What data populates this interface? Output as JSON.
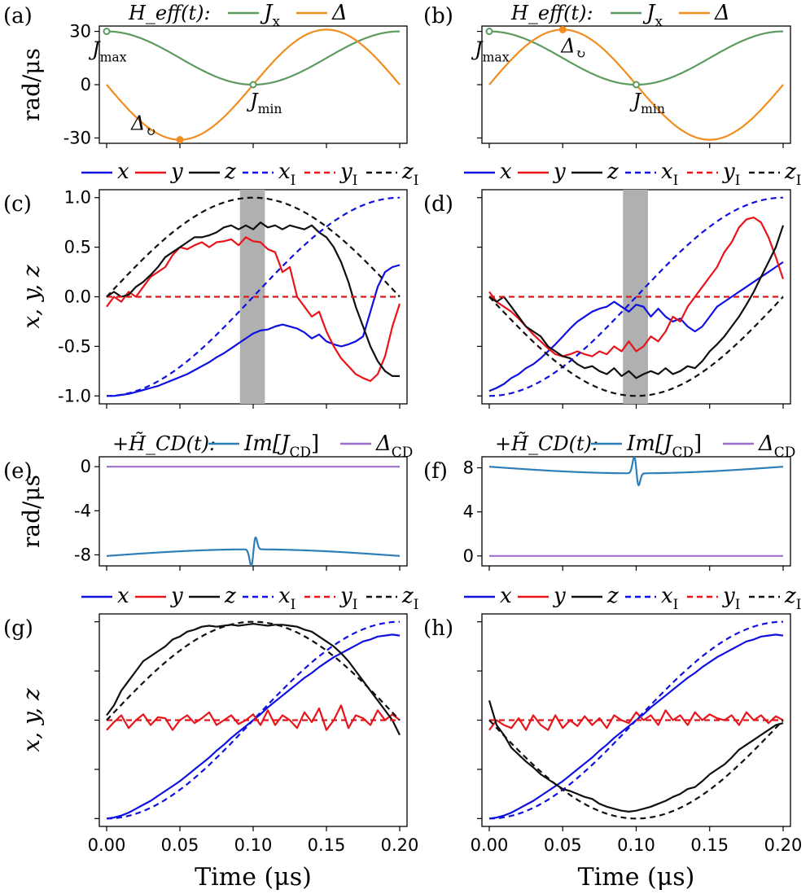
{
  "chart_data": [
    {
      "id": "a",
      "type": "line",
      "panel_label": "(a)",
      "legend_prefix": "H_eff(t):",
      "ylabel": "rad/μs",
      "ylim": [
        -33,
        33
      ],
      "yticks": [
        30,
        0,
        -30
      ],
      "ytick_labels": [
        "30",
        "0",
        "-30"
      ],
      "series": [
        {
          "name": "J_x",
          "label": "J",
          "sub": "x",
          "color": "#5b9b5e",
          "func": "jx",
          "amp": 30
        },
        {
          "name": "Δ",
          "label": "Δ",
          "color": "#f28c1e",
          "func": "delta",
          "amp": -31
        }
      ],
      "annotations": [
        {
          "label": "J",
          "sub": "max",
          "x": 0.0,
          "y": 30,
          "color": "#5b9b5e"
        },
        {
          "label": "J",
          "sub": "min",
          "x": 0.1,
          "y": 0,
          "color": "#5b9b5e"
        },
        {
          "label": "Δ",
          "sub": "↻",
          "x": 0.05,
          "y": -31,
          "color": "#f28c1e"
        }
      ]
    },
    {
      "id": "b",
      "type": "line",
      "panel_label": "(b)",
      "legend_prefix": "H_eff(t):",
      "ylim": [
        -33,
        33
      ],
      "yticks": [
        30,
        0,
        -30
      ],
      "series": [
        {
          "name": "J_x",
          "label": "J",
          "sub": "x",
          "color": "#5b9b5e",
          "func": "jx",
          "amp": 30
        },
        {
          "name": "Δ",
          "label": "Δ",
          "color": "#f28c1e",
          "func": "delta",
          "amp": 31
        }
      ],
      "annotations": [
        {
          "label": "J",
          "sub": "max",
          "x": 0.0,
          "y": 30,
          "color": "#5b9b5e"
        },
        {
          "label": "J",
          "sub": "min",
          "x": 0.1,
          "y": 0,
          "color": "#5b9b5e"
        },
        {
          "label": "Δ",
          "sub": "↻",
          "x": 0.05,
          "y": 31,
          "color": "#f28c1e"
        }
      ]
    },
    {
      "id": "c",
      "type": "line",
      "panel_label": "(c)",
      "ylabel": "x, y, z",
      "ylim": [
        -1.08,
        1.08
      ],
      "yticks": [
        1.0,
        0.5,
        0.0,
        -0.5,
        -1.0
      ],
      "ytick_labels": [
        "1.0",
        "0.5",
        "0.0",
        "-0.5",
        "-1.0"
      ],
      "shade": [
        0.091,
        0.108
      ],
      "legend": [
        "x",
        "y",
        "z",
        "x_I",
        "y_I",
        "z_I"
      ],
      "series": [
        {
          "name": "x",
          "color": "#1010e0",
          "dash": false,
          "x0": 0,
          "x1": 0.2,
          "values": [
            -1.0,
            -1.0,
            -0.99,
            -0.98,
            -0.96,
            -0.94,
            -0.92,
            -0.9,
            -0.87,
            -0.84,
            -0.81,
            -0.78,
            -0.74,
            -0.7,
            -0.66,
            -0.61,
            -0.57,
            -0.52,
            -0.47,
            -0.42,
            -0.37,
            -0.34,
            -0.33,
            -0.3,
            -0.28,
            -0.3,
            -0.32,
            -0.36,
            -0.42,
            -0.38,
            -0.45,
            -0.48,
            -0.5,
            -0.48,
            -0.45,
            -0.4,
            -0.15,
            0.1,
            0.25,
            0.3,
            0.32
          ]
        },
        {
          "name": "y",
          "color": "#e8141a",
          "dash": false,
          "x0": 0,
          "x1": 0.2,
          "values": [
            -0.1,
            0.0,
            -0.05,
            0.05,
            0.0,
            0.1,
            0.2,
            0.25,
            0.3,
            0.42,
            0.5,
            0.48,
            0.52,
            0.55,
            0.5,
            0.55,
            0.56,
            0.58,
            0.52,
            0.6,
            0.56,
            0.55,
            0.48,
            0.45,
            0.25,
            0.3,
            0.0,
            -0.1,
            -0.2,
            -0.15,
            -0.35,
            -0.5,
            -0.62,
            -0.7,
            -0.78,
            -0.82,
            -0.85,
            -0.78,
            -0.6,
            -0.3,
            -0.07
          ]
        },
        {
          "name": "z",
          "color": "#101010",
          "dash": false,
          "x0": 0,
          "x1": 0.2,
          "values": [
            0.0,
            0.05,
            0.0,
            0.02,
            0.1,
            0.15,
            0.22,
            0.3,
            0.4,
            0.45,
            0.5,
            0.55,
            0.6,
            0.6,
            0.62,
            0.65,
            0.7,
            0.72,
            0.68,
            0.72,
            0.68,
            0.75,
            0.7,
            0.72,
            0.68,
            0.72,
            0.7,
            0.68,
            0.72,
            0.65,
            0.6,
            0.5,
            0.35,
            0.15,
            -0.1,
            -0.3,
            -0.5,
            -0.65,
            -0.75,
            -0.8,
            -0.8
          ]
        },
        {
          "name": "x_I",
          "color": "#1010e0",
          "dash": true,
          "func": "xI"
        },
        {
          "name": "y_I",
          "color": "#e8141a",
          "dash": true,
          "func": "zero"
        },
        {
          "name": "z_I",
          "color": "#101010",
          "dash": true,
          "func": "zIpos"
        }
      ]
    },
    {
      "id": "d",
      "type": "line",
      "panel_label": "(d)",
      "ylim": [
        -1.08,
        1.08
      ],
      "yticks": [
        1.0,
        0.5,
        0.0,
        -0.5,
        -1.0
      ],
      "shade": [
        0.091,
        0.108
      ],
      "legend": [
        "x",
        "y",
        "z",
        "x_I",
        "y_I",
        "z_I"
      ],
      "series": [
        {
          "name": "x",
          "color": "#1010e0",
          "dash": false,
          "x0": 0,
          "x1": 0.2,
          "values": [
            -0.95,
            -0.92,
            -0.88,
            -0.82,
            -0.78,
            -0.72,
            -0.68,
            -0.62,
            -0.55,
            -0.48,
            -0.4,
            -0.32,
            -0.25,
            -0.2,
            -0.15,
            -0.12,
            -0.1,
            -0.05,
            -0.1,
            -0.15,
            -0.08,
            -0.1,
            -0.2,
            -0.12,
            -0.2,
            -0.25,
            -0.22,
            -0.3,
            -0.35,
            -0.3,
            -0.2,
            -0.1,
            -0.05,
            0.0,
            0.05,
            0.1,
            0.15,
            0.2,
            0.25,
            0.3,
            0.35
          ]
        },
        {
          "name": "y",
          "color": "#e8141a",
          "dash": false,
          "x0": 0,
          "x1": 0.2,
          "values": [
            0.05,
            -0.05,
            -0.1,
            -0.15,
            -0.22,
            -0.3,
            -0.38,
            -0.45,
            -0.52,
            -0.58,
            -0.6,
            -0.58,
            -0.55,
            -0.58,
            -0.6,
            -0.55,
            -0.58,
            -0.5,
            -0.55,
            -0.45,
            -0.55,
            -0.5,
            -0.4,
            -0.45,
            -0.35,
            -0.2,
            -0.25,
            -0.1,
            0.0,
            0.1,
            0.2,
            0.3,
            0.45,
            0.55,
            0.7,
            0.78,
            0.8,
            0.75,
            0.6,
            0.4,
            0.18
          ]
        },
        {
          "name": "z",
          "color": "#101010",
          "dash": false,
          "x0": 0,
          "x1": 0.2,
          "values": [
            0.0,
            -0.05,
            0.0,
            -0.1,
            -0.2,
            -0.3,
            -0.35,
            -0.4,
            -0.5,
            -0.55,
            -0.6,
            -0.62,
            -0.68,
            -0.72,
            -0.7,
            -0.75,
            -0.78,
            -0.72,
            -0.8,
            -0.75,
            -0.82,
            -0.78,
            -0.75,
            -0.78,
            -0.72,
            -0.78,
            -0.75,
            -0.7,
            -0.72,
            -0.65,
            -0.55,
            -0.48,
            -0.4,
            -0.3,
            -0.2,
            -0.08,
            0.05,
            0.2,
            0.35,
            0.5,
            0.72
          ]
        },
        {
          "name": "x_I",
          "color": "#1010e0",
          "dash": true,
          "func": "xI"
        },
        {
          "name": "y_I",
          "color": "#e8141a",
          "dash": true,
          "func": "zero"
        },
        {
          "name": "z_I",
          "color": "#101010",
          "dash": true,
          "func": "zIneg"
        }
      ]
    },
    {
      "id": "e",
      "type": "line",
      "panel_label": "(e)",
      "legend_prefix": "+H̃_CD(t):",
      "ylabel": "rad/μs",
      "ylim": [
        -9,
        0.9
      ],
      "yticks": [
        0,
        -4,
        -8
      ],
      "ytick_labels": [
        "0",
        "-4",
        "-8"
      ],
      "series": [
        {
          "name": "Im[J_CD]",
          "color": "#2e7fb8",
          "func": "jcd",
          "sign": -1
        },
        {
          "name": "Δ_CD",
          "color": "#9b6fc9",
          "func": "const",
          "value": 0
        }
      ]
    },
    {
      "id": "f",
      "type": "line",
      "panel_label": "(f)",
      "legend_prefix": "+H̃_CD(t):",
      "ylim": [
        -0.9,
        9
      ],
      "yticks": [
        8,
        4,
        0
      ],
      "ytick_labels": [
        "8",
        "4",
        "0"
      ],
      "series": [
        {
          "name": "Im[J_CD]",
          "color": "#2e7fb8",
          "func": "jcd",
          "sign": 1
        },
        {
          "name": "Δ_CD",
          "color": "#9b6fc9",
          "func": "const",
          "value": 0
        }
      ]
    },
    {
      "id": "g",
      "type": "line",
      "panel_label": "(g)",
      "ylabel": "x, y, z",
      "xlabel": "Time (μs)",
      "ylim": [
        -1.08,
        1.08
      ],
      "yticks": [
        1.0,
        0.5,
        0.0,
        -0.5,
        -1.0
      ],
      "xticks": [
        0,
        0.05,
        0.1,
        0.15,
        0.2
      ],
      "xtick_labels": [
        "0.00",
        "0.05",
        "0.10",
        "0.15",
        "0.20"
      ],
      "legend": [
        "x",
        "y",
        "z",
        "x_I",
        "y_I",
        "z_I"
      ],
      "series": [
        {
          "name": "x",
          "color": "#1010e0",
          "dash": false,
          "x0": 0,
          "x1": 0.2,
          "values": [
            -1.0,
            -0.99,
            -0.97,
            -0.94,
            -0.9,
            -0.86,
            -0.82,
            -0.77,
            -0.72,
            -0.67,
            -0.62,
            -0.56,
            -0.5,
            -0.44,
            -0.38,
            -0.31,
            -0.25,
            -0.18,
            -0.12,
            -0.06,
            0.0,
            0.06,
            0.13,
            0.19,
            0.25,
            0.31,
            0.37,
            0.43,
            0.48,
            0.54,
            0.59,
            0.64,
            0.68,
            0.72,
            0.76,
            0.8,
            0.82,
            0.85,
            0.86,
            0.87,
            0.86
          ]
        },
        {
          "name": "y",
          "color": "#e8141a",
          "dash": false,
          "x0": 0,
          "x1": 0.2,
          "values": [
            -0.1,
            -0.02,
            0.05,
            -0.08,
            0.0,
            0.06,
            -0.05,
            0.03,
            0.02,
            -0.1,
            0.0,
            0.05,
            -0.03,
            0.02,
            0.08,
            -0.05,
            0.0,
            0.05,
            -0.04,
            0.0,
            0.06,
            -0.05,
            0.1,
            -0.05,
            0.05,
            0.0,
            -0.08,
            0.08,
            -0.02,
            0.12,
            -0.1,
            0.0,
            0.15,
            -0.08,
            0.05,
            0.02,
            -0.05,
            0.1,
            0.0,
            0.06,
            0.0
          ]
        },
        {
          "name": "z",
          "color": "#101010",
          "dash": false,
          "x0": 0,
          "x1": 0.2,
          "values": [
            0.05,
            0.15,
            0.3,
            0.4,
            0.5,
            0.6,
            0.65,
            0.7,
            0.75,
            0.82,
            0.85,
            0.9,
            0.92,
            0.95,
            0.96,
            0.95,
            0.96,
            0.97,
            0.96,
            0.97,
            0.98,
            0.97,
            0.96,
            0.97,
            0.97,
            0.96,
            0.95,
            0.92,
            0.9,
            0.85,
            0.8,
            0.75,
            0.68,
            0.6,
            0.5,
            0.4,
            0.3,
            0.2,
            0.1,
            0.0,
            -0.15
          ]
        },
        {
          "name": "x_I",
          "color": "#1010e0",
          "dash": true,
          "func": "xI"
        },
        {
          "name": "y_I",
          "color": "#e8141a",
          "dash": true,
          "func": "zero"
        },
        {
          "name": "z_I",
          "color": "#101010",
          "dash": true,
          "func": "zIpos"
        }
      ]
    },
    {
      "id": "h",
      "type": "line",
      "panel_label": "(h)",
      "xlabel": "Time (μs)",
      "ylim": [
        -1.08,
        1.08
      ],
      "yticks": [
        1.0,
        0.5,
        0.0,
        -0.5,
        -1.0
      ],
      "xticks": [
        0,
        0.05,
        0.1,
        0.15,
        0.2
      ],
      "xtick_labels": [
        "0.00",
        "0.05",
        "0.10",
        "0.15",
        "0.20"
      ],
      "legend": [
        "x",
        "y",
        "z",
        "x_I",
        "y_I",
        "z_I"
      ],
      "series": [
        {
          "name": "x",
          "color": "#1010e0",
          "dash": false,
          "x0": 0,
          "x1": 0.2,
          "values": [
            -1.0,
            -0.99,
            -0.97,
            -0.94,
            -0.9,
            -0.86,
            -0.82,
            -0.77,
            -0.72,
            -0.67,
            -0.62,
            -0.56,
            -0.5,
            -0.44,
            -0.38,
            -0.31,
            -0.25,
            -0.18,
            -0.12,
            -0.06,
            0.0,
            0.06,
            0.13,
            0.19,
            0.25,
            0.31,
            0.37,
            0.43,
            0.48,
            0.54,
            0.59,
            0.64,
            0.68,
            0.72,
            0.76,
            0.8,
            0.82,
            0.85,
            0.86,
            0.87,
            0.86
          ]
        },
        {
          "name": "y",
          "color": "#e8141a",
          "dash": false,
          "x0": 0,
          "x1": 0.2,
          "values": [
            -0.1,
            0.0,
            -0.05,
            -0.08,
            0.02,
            -0.1,
            0.05,
            -0.05,
            -0.1,
            0.05,
            -0.08,
            0.0,
            -0.06,
            0.04,
            -0.05,
            0.02,
            -0.08,
            0.05,
            0.0,
            -0.03,
            0.08,
            0.0,
            0.05,
            -0.05,
            0.1,
            0.0,
            0.05,
            -0.05,
            0.08,
            0.0,
            0.06,
            0.02,
            0.0,
            0.05,
            -0.05,
            0.08,
            0.0,
            0.05,
            -0.03,
            0.04,
            0.0
          ]
        },
        {
          "name": "z",
          "color": "#101010",
          "dash": false,
          "x0": 0,
          "x1": 0.2,
          "values": [
            0.2,
            -0.05,
            -0.15,
            -0.28,
            -0.35,
            -0.42,
            -0.48,
            -0.55,
            -0.6,
            -0.65,
            -0.7,
            -0.72,
            -0.75,
            -0.78,
            -0.8,
            -0.85,
            -0.88,
            -0.9,
            -0.92,
            -0.93,
            -0.92,
            -0.9,
            -0.88,
            -0.85,
            -0.82,
            -0.78,
            -0.75,
            -0.7,
            -0.68,
            -0.62,
            -0.55,
            -0.5,
            -0.45,
            -0.38,
            -0.3,
            -0.25,
            -0.2,
            -0.15,
            -0.1,
            -0.05,
            -0.03
          ]
        },
        {
          "name": "x_I",
          "color": "#1010e0",
          "dash": true,
          "func": "xI"
        },
        {
          "name": "y_I",
          "color": "#e8141a",
          "dash": true,
          "func": "zero"
        },
        {
          "name": "z_I",
          "color": "#101010",
          "dash": true,
          "func": "zIneg"
        }
      ]
    }
  ]
}
